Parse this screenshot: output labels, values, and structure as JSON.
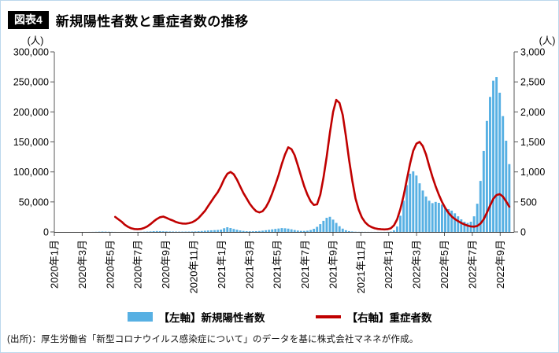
{
  "page": {
    "header": {
      "tag": "図表4",
      "title": "新規陽性者数と重症者数の推移"
    },
    "source_note": "(出所)：厚生労働省「新型コロナウイルス感染症について」のデータを基に株式会社マネネが作成。"
  },
  "chart_data": {
    "type": "combo",
    "title": "新規陽性者数と重症者数の推移",
    "x_range": {
      "start": "2020年1月",
      "end": "2022年9月"
    },
    "x_months_total": 33,
    "x_unit": "week_index_from_2020-01",
    "x_tick_labels": [
      "2020年1月",
      "2020年3月",
      "2020年5月",
      "2020年7月",
      "2020年9月",
      "2020年11月",
      "2021年1月",
      "2021年3月",
      "2021年5月",
      "2021年7月",
      "2021年9月",
      "2021年11月",
      "2022年1月",
      "2022年3月",
      "2022年5月",
      "2022年7月",
      "2022年9月"
    ],
    "left_axis": {
      "unit": "(人)",
      "min": 0,
      "max": 300000,
      "step": 50000,
      "tick_labels": [
        "0",
        "50,000",
        "100,000",
        "150,000",
        "200,000",
        "250,000",
        "300,000"
      ]
    },
    "right_axis": {
      "unit": "(人)",
      "min": 0,
      "max": 3000,
      "step": 500,
      "tick_labels": [
        "0",
        "500",
        "1,000",
        "1,500",
        "2,000",
        "2,500",
        "3,000"
      ]
    },
    "grid": false,
    "legend_position": "bottom",
    "series": [
      {
        "name": "【左軸】新規陽性者数",
        "type": "bar",
        "axis": "left",
        "color": "#57b0e3",
        "values": [
          0,
          0,
          1,
          2,
          3,
          5,
          8,
          12,
          15,
          25,
          40,
          80,
          150,
          250,
          450,
          650,
          550,
          380,
          200,
          90,
          40,
          35,
          45,
          55,
          70,
          90,
          150,
          250,
          400,
          600,
          900,
          1300,
          1500,
          1350,
          1100,
          900,
          750,
          650,
          600,
          550,
          550,
          600,
          650,
          750,
          900,
          1200,
          1600,
          2000,
          2400,
          2700,
          3000,
          3300,
          3900,
          6200,
          7800,
          6500,
          5000,
          3700,
          2500,
          1700,
          1250,
          1100,
          1150,
          1300,
          1600,
          2100,
          2800,
          3500,
          4300,
          5000,
          5700,
          6400,
          6100,
          5500,
          4400,
          3200,
          2300,
          1750,
          1700,
          2100,
          3200,
          5200,
          8500,
          13000,
          18500,
          23500,
          25200,
          20500,
          15000,
          9500,
          5500,
          2800,
          1400,
          750,
          400,
          260,
          210,
          180,
          160,
          150,
          145,
          140,
          150,
          175,
          280,
          700,
          2600,
          9000,
          27000,
          52000,
          78000,
          97000,
          101000,
          94000,
          81000,
          69000,
          59000,
          52000,
          48000,
          50000,
          48500,
          45500,
          40500,
          38000,
          35500,
          31000,
          26000,
          21000,
          17000,
          15000,
          17000,
          26000,
          47000,
          85000,
          135000,
          185000,
          225000,
          252000,
          258000,
          232000,
          193000,
          152000,
          113000
        ]
      },
      {
        "name": "【右軸】重症者数",
        "type": "line",
        "axis": "right",
        "color": "#c00000",
        "values": [
          null,
          null,
          null,
          null,
          null,
          null,
          null,
          null,
          null,
          null,
          null,
          null,
          null,
          null,
          null,
          null,
          null,
          null,
          null,
          250,
          210,
          170,
          120,
          85,
          60,
          48,
          45,
          50,
          65,
          90,
          130,
          175,
          215,
          245,
          255,
          235,
          210,
          190,
          165,
          150,
          140,
          138,
          145,
          160,
          190,
          230,
          290,
          350,
          430,
          510,
          590,
          660,
          760,
          880,
          970,
          1000,
          960,
          870,
          760,
          650,
          560,
          470,
          400,
          345,
          325,
          345,
          410,
          510,
          640,
          790,
          950,
          1130,
          1290,
          1410,
          1380,
          1280,
          1110,
          930,
          760,
          620,
          510,
          450,
          460,
          620,
          900,
          1250,
          1650,
          2000,
          2200,
          2150,
          1950,
          1600,
          1200,
          850,
          560,
          370,
          240,
          160,
          110,
          80,
          60,
          50,
          44,
          42,
          45,
          60,
          110,
          210,
          380,
          600,
          870,
          1130,
          1350,
          1470,
          1500,
          1430,
          1290,
          1100,
          920,
          760,
          620,
          500,
          400,
          320,
          260,
          215,
          180,
          150,
          125,
          105,
          92,
          88,
          100,
          140,
          210,
          320,
          440,
          550,
          615,
          630,
          590,
          510,
          420
        ]
      }
    ]
  }
}
